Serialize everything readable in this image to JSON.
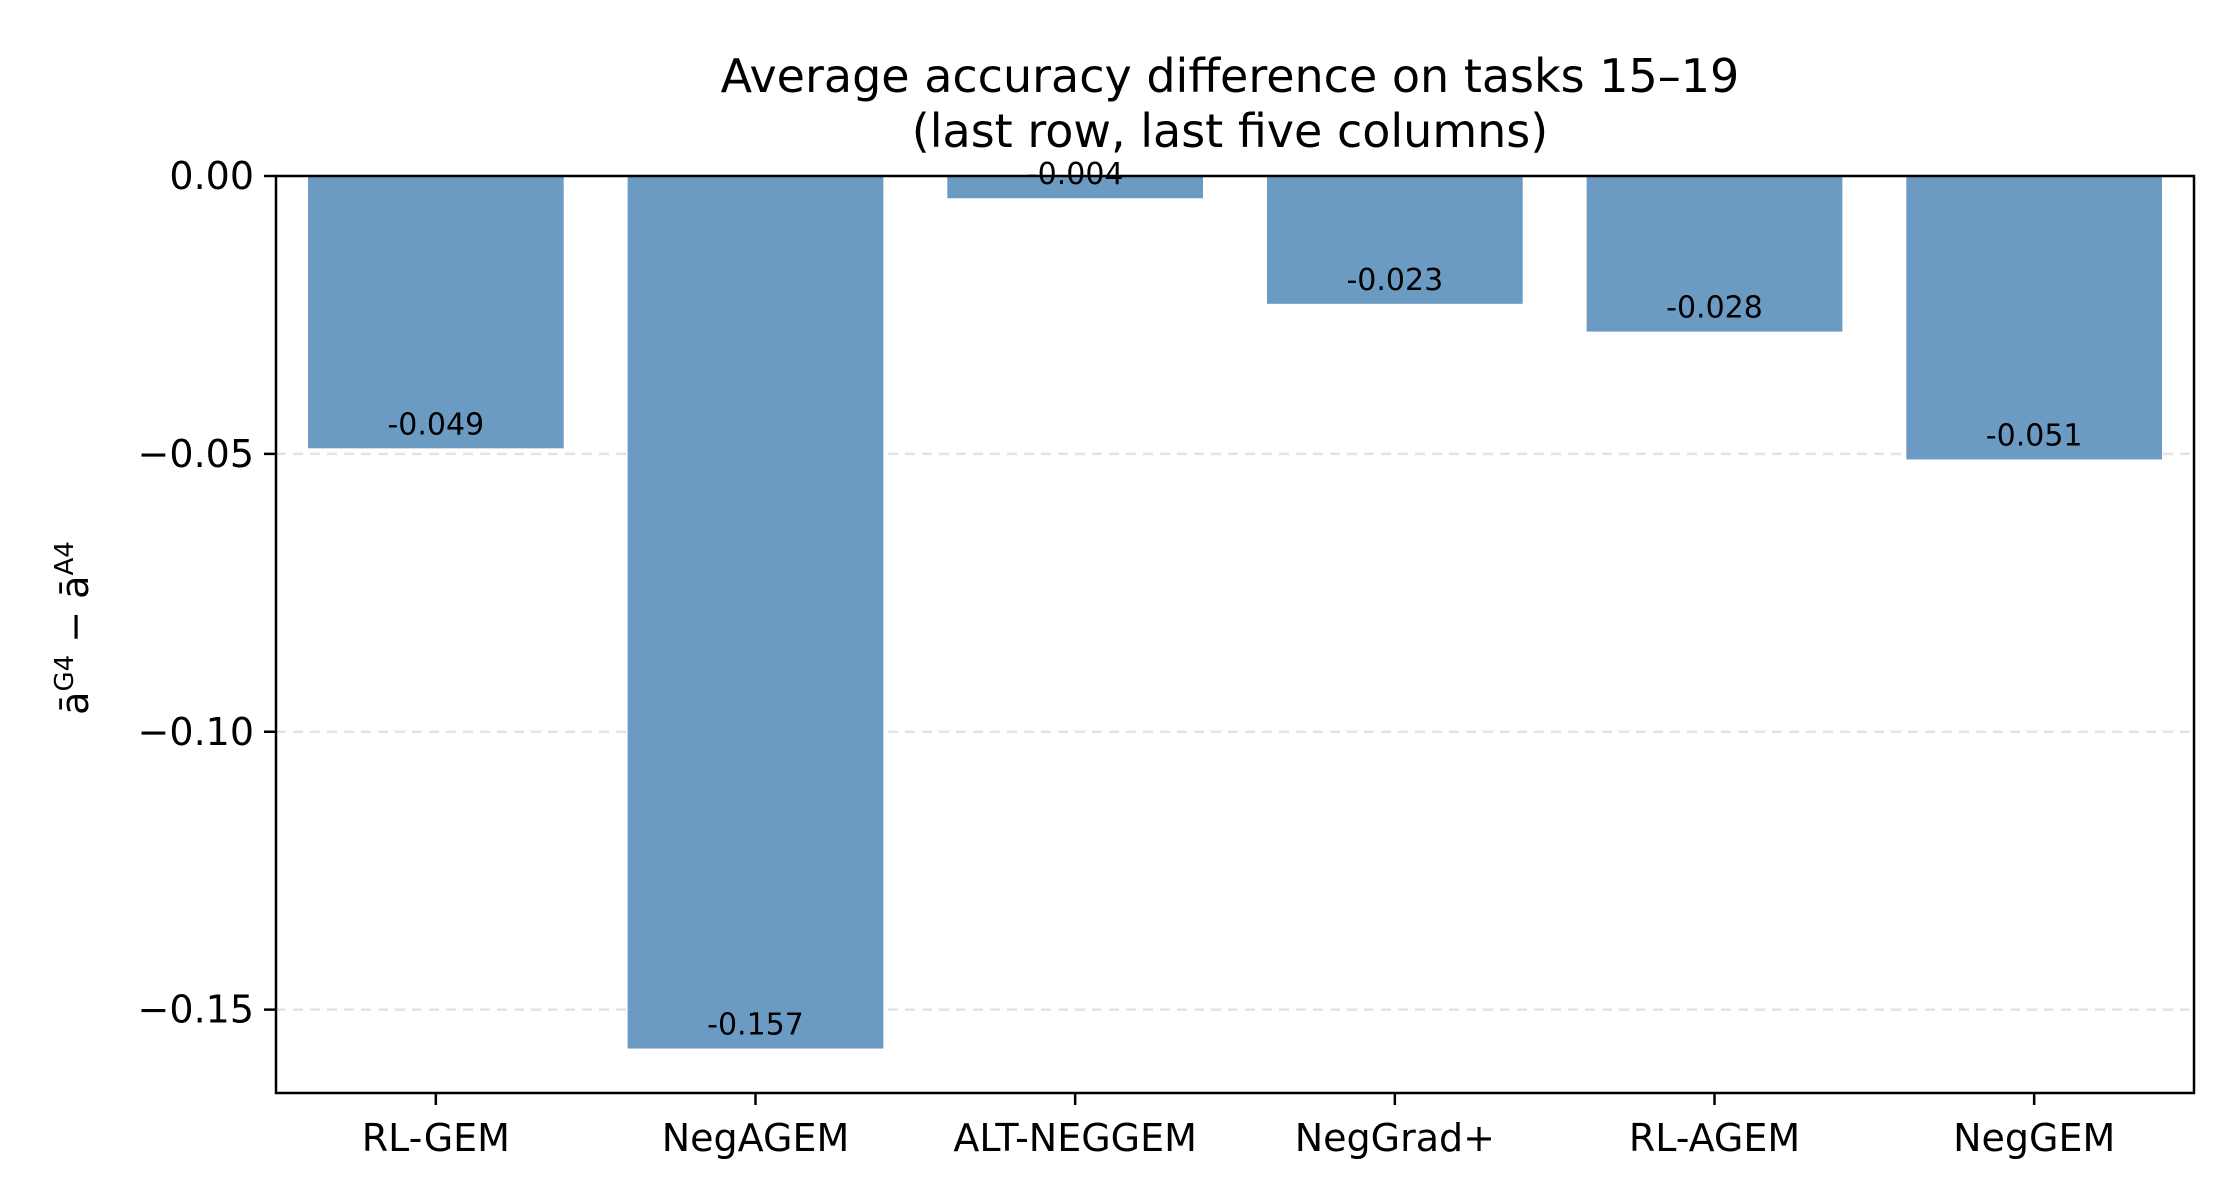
{
  "chart_data": {
    "type": "bar",
    "title": "Average accuracy difference on tasks 15–19",
    "subtitle": "(last row, last five columns)",
    "xlabel": "",
    "ylabel": {
      "base": "ā",
      "sup1": "G4",
      "minus": " − ",
      "base2": "ā",
      "sup2": "A4"
    },
    "categories": [
      "RL-GEM",
      "NegAGEM",
      "ALT-NEGGEM",
      "NegGrad+",
      "RL-AGEM",
      "NegGEM"
    ],
    "values": [
      -0.049,
      -0.157,
      -0.004,
      -0.023,
      -0.028,
      -0.051
    ],
    "value_labels": [
      "-0.049",
      "-0.157",
      "-0.004",
      "-0.023",
      "-0.028",
      "-0.051"
    ],
    "ylim": [
      -0.165,
      0.0
    ],
    "yticks": [
      0.0,
      -0.05,
      -0.1,
      -0.15
    ],
    "ytick_labels": [
      "0.00",
      "−0.05",
      "−0.10",
      "−0.15"
    ],
    "grid": "y-dashed",
    "legend": "none",
    "colors": {
      "bar": "#6b9bc3",
      "grid": "#e3e3e3",
      "axis": "#000000"
    }
  }
}
